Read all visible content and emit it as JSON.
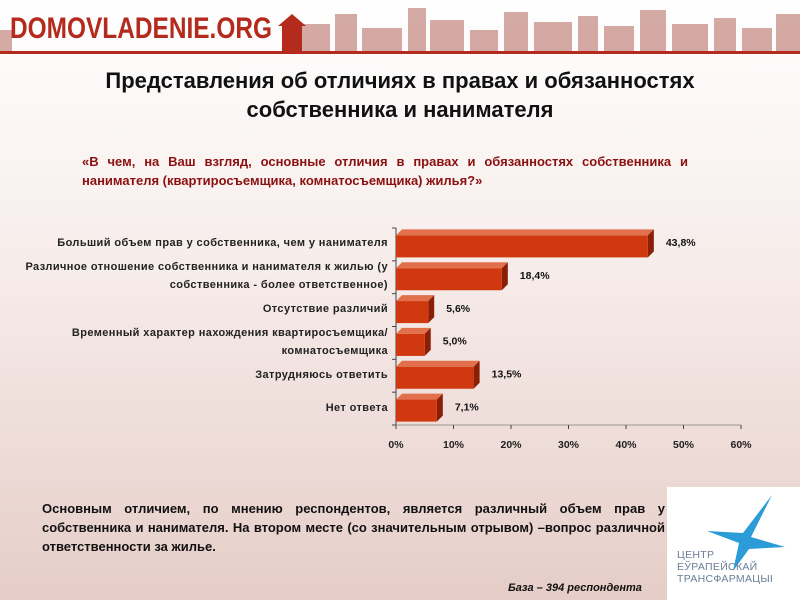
{
  "header": {
    "logo": "DOMOVLADENIE.ORG"
  },
  "chart_data": {
    "type": "hbar3d",
    "title": "Представления об отличиях в правах и обязанностях собственника и нанимателя",
    "subtitle": "«В чем, на Ваш взгляд, основные отличия в правах и обязанностях собственника и нанимателя (квартиросъемщика, комнатосъемщика) жилья?»",
    "categories": [
      "Больший объем прав у собственника, чем у нанимателя",
      "Различное отношение собственника и нанимателя к жилью (у собственника - более ответственное)",
      "Отсутствие различий",
      "Временный характер нахождения квартиросъемщика/ комнатосъемщика",
      "Затрудняюсь ответить",
      "Нет ответа"
    ],
    "values": [
      43.8,
      18.4,
      5.6,
      5.0,
      13.5,
      7.1
    ],
    "value_labels": [
      "43,8%",
      "18,4%",
      "5,6%",
      "5,0%",
      "13,5%",
      "7,1%"
    ],
    "color": "#d0380f",
    "xlim": [
      0,
      60
    ],
    "xticks": [
      {
        "value": 0,
        "label": "0%"
      },
      {
        "value": 10,
        "label": "10%"
      },
      {
        "value": 20,
        "label": "20%"
      },
      {
        "value": 30,
        "label": "30%"
      },
      {
        "value": 40,
        "label": "40%"
      },
      {
        "value": 50,
        "label": "50%"
      },
      {
        "value": 60,
        "label": "60%"
      }
    ]
  },
  "summary": "Основным отличием, по мнению респондентов, является различный объем прав у собственника и нанимателя. На втором месте (со значительным отрывом) –вопрос различной ответственности за жилье.",
  "base_note": "База – 394 респондента",
  "partner_logo": [
    "ЦЕНТР",
    "ЕЎРАПЕЙСКАЙ",
    "ТРАНСФАРМАЦЫІ"
  ]
}
